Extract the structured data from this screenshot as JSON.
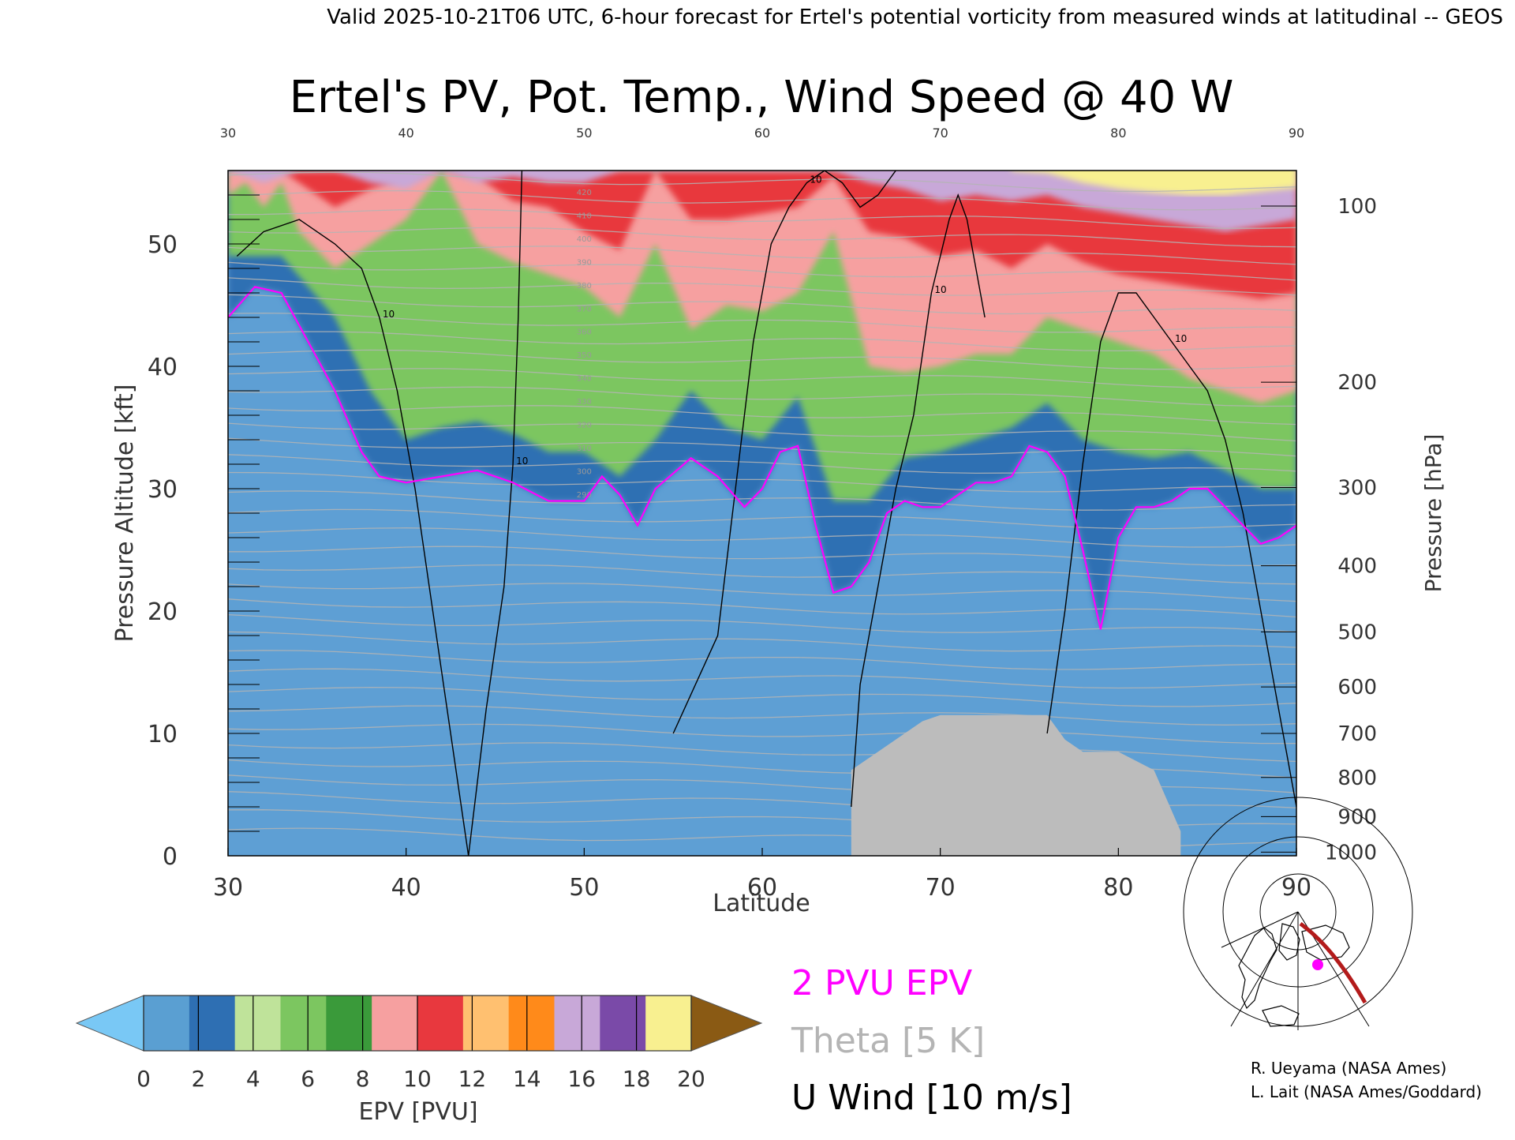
{
  "header": {
    "valid_line": "Valid 2025-10-21T06 UTC, 6-hour forecast for Ertel's potential vorticity from measured winds at latitudinal -- GEOS"
  },
  "chart_data": {
    "type": "heatmap",
    "title": "Ertel's PV, Pot. Temp., Wind Speed @ 40 W",
    "xlabel": "Latitude",
    "ylabel": "Pressure Altitude [kft]",
    "y2label": "Pressure [hPa]",
    "xlim": [
      30,
      90
    ],
    "ylim": [
      0,
      56
    ],
    "x_ticks": [
      "30",
      "40",
      "50",
      "60",
      "70",
      "80",
      "90"
    ],
    "x_tick_values": [
      30,
      40,
      50,
      60,
      70,
      80,
      90
    ],
    "y_ticks": [
      "0",
      "10",
      "20",
      "30",
      "40",
      "50"
    ],
    "y_tick_values": [
      0,
      10,
      20,
      30,
      40,
      50
    ],
    "pressure_ticks": [
      "100",
      "200",
      "300",
      "400",
      "500",
      "600",
      "700",
      "800",
      "900",
      "1000"
    ],
    "pressure_tick_kft": [
      53.1,
      38.7,
      30.1,
      23.7,
      18.3,
      13.8,
      10.0,
      6.4,
      3.2,
      0.3
    ],
    "grid": false,
    "colorbar": {
      "label": "EPV [PVU]",
      "tick_labels": [
        "0",
        "2",
        "4",
        "6",
        "8",
        "10",
        "12",
        "14",
        "16",
        "18",
        "20"
      ],
      "colors": [
        "#79c8f5",
        "#5a9fd2",
        "#2e6fb3",
        "#bfe39a",
        "#7cc660",
        "#3a9a3a",
        "#f6a0a0",
        "#e8383e",
        "#ffc070",
        "#ff8a1a",
        "#c8a8d8",
        "#7a4aa8",
        "#f8f090",
        "#8a5a14"
      ]
    },
    "legend": [
      {
        "label": "2 PVU EPV",
        "color": "#ff00ff"
      },
      {
        "label": "Theta [5 K]",
        "color": "#b4b4b4"
      },
      {
        "label": "U Wind [10 m/s]",
        "color": "#000000"
      }
    ],
    "tropopause_2pvu": {
      "lat": [
        30,
        31.5,
        33,
        34.5,
        36,
        37.5,
        38.5,
        40,
        42,
        44,
        46,
        48,
        50,
        51,
        52,
        53,
        54,
        56,
        57.5,
        59,
        60,
        61,
        62,
        63,
        64,
        65,
        66,
        67,
        68,
        69,
        70,
        71,
        72,
        73,
        74,
        75,
        76,
        77,
        78,
        79,
        80,
        81,
        82,
        83,
        84,
        85,
        86,
        87,
        88,
        89,
        90
      ],
      "kft": [
        44,
        46.5,
        46,
        42,
        38,
        33,
        31,
        30.5,
        31,
        31.5,
        30.5,
        29,
        29,
        31,
        29.5,
        27,
        30,
        32.5,
        31,
        28.5,
        30,
        33,
        33.5,
        27,
        21.5,
        22,
        24,
        28,
        29,
        28.5,
        28.5,
        29.5,
        30.5,
        30.5,
        31,
        33.5,
        33,
        31,
        25,
        18.5,
        26,
        28.5,
        28.5,
        29,
        30,
        30,
        28.5,
        27,
        25.5,
        26,
        27
      ]
    },
    "pv_regions": [
      {
        "pvu": 5.5,
        "lat": [
          30,
          33,
          36,
          38,
          40,
          42,
          44,
          46,
          48,
          50,
          52,
          54,
          56,
          58,
          60,
          62,
          64,
          66,
          68,
          70,
          72,
          74,
          76,
          78,
          80,
          82,
          84,
          86,
          88,
          90
        ],
        "kft_top": [
          49,
          49,
          44,
          38,
          34,
          35,
          35.5,
          34.5,
          33,
          33,
          31,
          34,
          38,
          35,
          34,
          37.5,
          29,
          29,
          32.5,
          33,
          34,
          35,
          37,
          34,
          33,
          32.5,
          33,
          31.5,
          30,
          30
        ]
      },
      {
        "pvu": 9,
        "lat": [
          30,
          31,
          32,
          33,
          34,
          36,
          38,
          40,
          42,
          44,
          46,
          48,
          50,
          52,
          54,
          56,
          58,
          60,
          62,
          64,
          66,
          68,
          70,
          72,
          74,
          76,
          78,
          80,
          82,
          84,
          86,
          88,
          90
        ],
        "kft_top": [
          54,
          55,
          53,
          55,
          51,
          48,
          50,
          52,
          56,
          50,
          48.5,
          47.5,
          46.5,
          44,
          50,
          43,
          45,
          44.5,
          46,
          51,
          40,
          39.5,
          40,
          41,
          41,
          44,
          43,
          42,
          41,
          39,
          38,
          37,
          38
        ]
      },
      {
        "pvu": 11,
        "lat": [
          30,
          31,
          32,
          33,
          34,
          36,
          38,
          40,
          42,
          44,
          46,
          48,
          50,
          52,
          54,
          56,
          58,
          60,
          62,
          64,
          66,
          68,
          70,
          72,
          74,
          76,
          78,
          80,
          82,
          84,
          86,
          88,
          90
        ],
        "kft_top": [
          56,
          56,
          56,
          56,
          55,
          53,
          54.5,
          55.5,
          56,
          55.5,
          53.5,
          53,
          51,
          49.5,
          56,
          52,
          52,
          52.5,
          53,
          55.5,
          51,
          50.5,
          49,
          49.5,
          48,
          50,
          48.5,
          47.5,
          47,
          46.5,
          46,
          45.5,
          46
        ]
      },
      {
        "pvu": 15,
        "lat": [
          30,
          32,
          34,
          36,
          38,
          40,
          42,
          44,
          46,
          48,
          50,
          52,
          54,
          56,
          58,
          60,
          62,
          64,
          66,
          68,
          70,
          72,
          74,
          76,
          78,
          80,
          82,
          84,
          86,
          88,
          90
        ],
        "kft_top": [
          56,
          56,
          56,
          56,
          56,
          56,
          56,
          56,
          56,
          56,
          56,
          56,
          56,
          56,
          56,
          56,
          56,
          56,
          56,
          56,
          56,
          56,
          56,
          56,
          56,
          56,
          56,
          56,
          56,
          56,
          56
        ],
        "kft_bottom": [
          56,
          55,
          56,
          56,
          55,
          54.5,
          56,
          55,
          55.5,
          55,
          55,
          56,
          56,
          56,
          56,
          56,
          56,
          56,
          55,
          54.5,
          53.5,
          54,
          53.5,
          54,
          53,
          52.5,
          52,
          51.5,
          51,
          51.5,
          52
        ]
      },
      {
        "pvu": 18,
        "lat": [
          74,
          76,
          78,
          80,
          82,
          84,
          86,
          88,
          90
        ],
        "kft_bottom": [
          56,
          55.8,
          55,
          54.5,
          54.2,
          54,
          54,
          54.3,
          54.6
        ]
      }
    ],
    "u_wind_contours": [
      {
        "label": "10",
        "lat": [
          30.5,
          32,
          34,
          36,
          37.5,
          38.5,
          39.5,
          40.5,
          41.5,
          42.5,
          43.5
        ],
        "kft": [
          49,
          51,
          52,
          50,
          48,
          44,
          38,
          30,
          20,
          10,
          0
        ]
      },
      {
        "label": "10",
        "lat": [
          43.5,
          44.5,
          45.5,
          46,
          46.3,
          46.5
        ],
        "kft": [
          0,
          12,
          22,
          32,
          44,
          56
        ]
      },
      {
        "label": "10",
        "lat": [
          55,
          57.5,
          58.5,
          59.5,
          60.5,
          61.5,
          62.5,
          63.5,
          64.5,
          65.5,
          66.5,
          67.5
        ],
        "kft": [
          10,
          18,
          30,
          42,
          50,
          53,
          55,
          56,
          55,
          53,
          54,
          56
        ]
      },
      {
        "label": "10",
        "lat": [
          65,
          65.5,
          66.5,
          67.5,
          68.5,
          69.5,
          70.5,
          71,
          71.5,
          72,
          72.5
        ],
        "kft": [
          4,
          14,
          22,
          30,
          36,
          46,
          52,
          54,
          52,
          48,
          44
        ]
      },
      {
        "label": "10",
        "lat": [
          76,
          77,
          78,
          79,
          80,
          81,
          82,
          83,
          84,
          85,
          86,
          87,
          88,
          89,
          90
        ],
        "kft": [
          10,
          20,
          32,
          42,
          46,
          46,
          44,
          42,
          40,
          38,
          34,
          28,
          20,
          12,
          4
        ]
      }
    ],
    "theta_labels": [
      "420",
      "410",
      "400",
      "390",
      "380",
      "370",
      "360",
      "350",
      "340",
      "330",
      "320",
      "310",
      "300",
      "290"
    ],
    "surface_mask": {
      "lat": [
        65,
        67,
        68,
        69,
        70,
        71,
        72,
        74,
        76,
        77,
        78,
        80,
        82,
        83.5,
        83.5
      ],
      "kft_top": [
        7,
        9,
        10,
        11,
        11.5,
        11.5,
        11.5,
        11.5,
        11.5,
        9.5,
        8.5,
        8.5,
        7,
        2,
        0
      ]
    },
    "inset_map": {
      "credits": [
        "R. Ueyama (NASA Ames)",
        "L. Lait (NASA Ames/Goddard)"
      ]
    }
  }
}
